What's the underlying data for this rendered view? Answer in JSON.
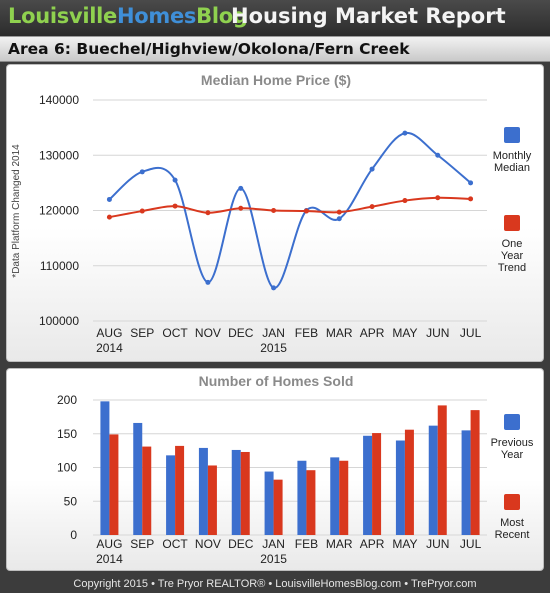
{
  "header": {
    "brand_part1": "Louisville",
    "brand_part2": "Homes",
    "brand_part3": "Blog",
    "report_title": "Housing Market Report"
  },
  "area_title": "Area 6: Buechel/Highview/Okolona/Fern Creek",
  "footer": "Copyright  2015  • Tre Pryor REALTOR®  • LouisvilleHomesBlog.com • TrePryor.com",
  "colors": {
    "blue": "#3c6fce",
    "red": "#d9381e",
    "brand_green": "#8fd14f",
    "brand_blue": "#3f8fd8",
    "header_bg": "#2c2c2c"
  },
  "chart_data": [
    {
      "type": "line",
      "title": "Median Home Price ($)",
      "side_note": "*Data Platform Changed 2014",
      "categories": [
        "AUG",
        "SEP",
        "OCT",
        "NOV",
        "DEC",
        "JAN",
        "FEB",
        "MAR",
        "APR",
        "MAY",
        "JUN",
        "JUL"
      ],
      "category_sublabels": [
        "2014",
        "",
        "",
        "",
        "",
        "2015",
        "",
        "",
        "",
        "",
        "",
        ""
      ],
      "ylim": [
        100000,
        140000
      ],
      "yticks": [
        "140000",
        "130000",
        "120000",
        "110000",
        "100000"
      ],
      "grid": true,
      "legend_position": "right",
      "series": [
        {
          "name": "Monthly Median",
          "legend_lines": [
            "Monthly",
            "Median"
          ],
          "color": "#3c6fce",
          "smooth": true,
          "values": [
            122000,
            127000,
            125500,
            107000,
            124000,
            106000,
            120000,
            118500,
            127500,
            134000,
            130000,
            125000
          ]
        },
        {
          "name": "One Year Trend",
          "legend_lines": [
            "One",
            "Year",
            "Trend"
          ],
          "color": "#d9381e",
          "smooth": true,
          "values": [
            118800,
            119900,
            120800,
            119600,
            120400,
            120000,
            119900,
            119700,
            120700,
            121800,
            122300,
            122100
          ]
        }
      ]
    },
    {
      "type": "bar",
      "title": "Number of Homes Sold",
      "categories": [
        "AUG",
        "SEP",
        "OCT",
        "NOV",
        "DEC",
        "JAN",
        "FEB",
        "MAR",
        "APR",
        "MAY",
        "JUN",
        "JUL"
      ],
      "category_sublabels": [
        "2014",
        "",
        "",
        "",
        "",
        "2015",
        "",
        "",
        "",
        "",
        "",
        ""
      ],
      "ylim": [
        0,
        200
      ],
      "yticks": [
        "200",
        "150",
        "100",
        "50",
        "0"
      ],
      "grid": true,
      "legend_position": "right",
      "series": [
        {
          "name": "Previous Year",
          "legend_lines": [
            "Previous",
            "Year"
          ],
          "color": "#3c6fce",
          "values": [
            198,
            166,
            118,
            129,
            126,
            94,
            110,
            115,
            147,
            140,
            162,
            155
          ]
        },
        {
          "name": "Most Recent",
          "legend_lines": [
            "Most",
            "Recent"
          ],
          "color": "#d9381e",
          "values": [
            149,
            131,
            132,
            103,
            123,
            82,
            96,
            110,
            151,
            156,
            192,
            185
          ]
        }
      ]
    }
  ]
}
